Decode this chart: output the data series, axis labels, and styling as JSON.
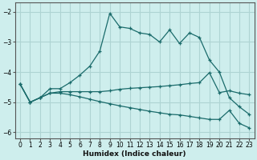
{
  "xlabel": "Humidex (Indice chaleur)",
  "background_color": "#ceeeed",
  "grid_color": "#aed4d3",
  "line_color": "#1a6b6b",
  "xlim": [
    -0.5,
    23.5
  ],
  "ylim": [
    -6.2,
    -1.7
  ],
  "yticks": [
    -6,
    -5,
    -4,
    -3,
    -2
  ],
  "xticks": [
    0,
    1,
    2,
    3,
    4,
    5,
    6,
    7,
    8,
    9,
    10,
    11,
    12,
    13,
    14,
    15,
    16,
    17,
    18,
    19,
    20,
    21,
    22,
    23
  ],
  "upper_y": [
    -4.4,
    -5.0,
    -4.85,
    -4.55,
    -4.55,
    -4.35,
    -4.1,
    -3.8,
    -3.3,
    -2.05,
    -2.5,
    -2.55,
    -2.7,
    -2.75,
    -3.0,
    -2.6,
    -3.05,
    -2.7,
    -2.85,
    -3.6,
    -4.0,
    -4.85,
    -5.15,
    -5.4
  ],
  "mid_y": [
    -4.4,
    -5.0,
    -4.85,
    -4.7,
    -4.65,
    -4.65,
    -4.65,
    -4.65,
    -4.65,
    -4.62,
    -4.57,
    -4.54,
    -4.52,
    -4.5,
    -4.48,
    -4.45,
    -4.42,
    -4.38,
    -4.35,
    -4.02,
    -4.68,
    -4.62,
    -4.7,
    -4.75
  ],
  "lower_y": [
    -4.4,
    -5.0,
    -4.85,
    -4.7,
    -4.7,
    -4.75,
    -4.82,
    -4.9,
    -4.98,
    -5.05,
    -5.12,
    -5.18,
    -5.24,
    -5.3,
    -5.35,
    -5.4,
    -5.42,
    -5.47,
    -5.52,
    -5.57,
    -5.57,
    -5.27,
    -5.7,
    -5.85
  ]
}
